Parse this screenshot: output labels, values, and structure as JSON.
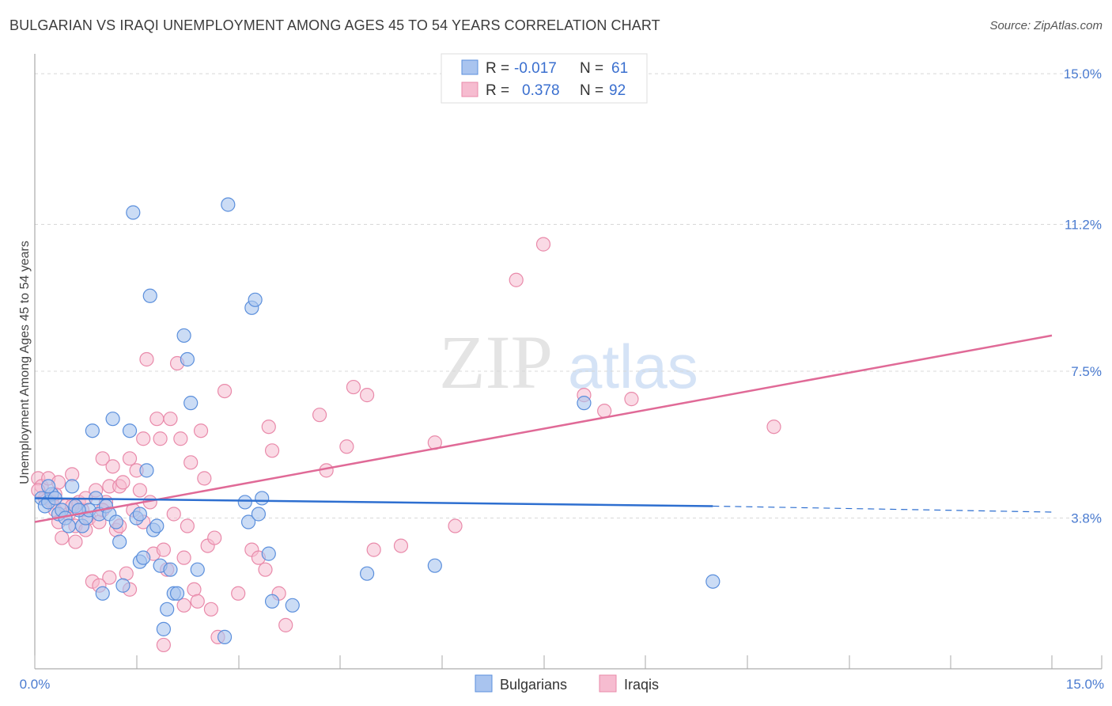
{
  "header": {
    "title": "BULGARIAN VS IRAQI UNEMPLOYMENT AMONG AGES 45 TO 54 YEARS CORRELATION CHART",
    "source": "Source: ZipAtlas.com"
  },
  "watermark": {
    "zip": "ZIP",
    "atlas": "atlas"
  },
  "legend": {
    "bulgarians": {
      "r_label": "R =",
      "r_value": "-0.017",
      "n_label": "N =",
      "n_value": "61"
    },
    "iraqis": {
      "r_label": "R =",
      "r_value": "0.378",
      "n_label": "N =",
      "n_value": "92"
    }
  },
  "colors": {
    "bulgarian_fill": "#a9c4ef",
    "bulgarian_stroke": "#5b8fdc",
    "bulgarian_line": "#2e6fd0",
    "iraqi_fill": "#f6bcd0",
    "iraqi_stroke": "#e98aaa",
    "iraqi_line": "#e06a97",
    "grid": "#d8d8d8",
    "tick": "#4a7bd0"
  },
  "chart_data": {
    "type": "scatter",
    "title": "BULGARIAN VS IRAQI UNEMPLOYMENT AMONG AGES 45 TO 54 YEARS CORRELATION CHART",
    "xlabel": "",
    "ylabel": "Unemployment Among Ages 45 to 54 years",
    "xlim": [
      0,
      15
    ],
    "ylim": [
      0,
      15.5
    ],
    "x_tick_labels": [
      "0.0%",
      "15.0%"
    ],
    "y_ticks": [
      3.8,
      7.5,
      11.2,
      15.0
    ],
    "y_tick_labels": [
      "3.8%",
      "7.5%",
      "11.2%",
      "15.0%"
    ],
    "grid": true,
    "series": [
      {
        "name": "Bulgarians",
        "r": -0.017,
        "n": 61,
        "trend": {
          "x0": 0,
          "y0": 4.3,
          "x1": 10.0,
          "y1": 4.1,
          "dashed_to_x": 15,
          "dashed_to_y": 3.95
        },
        "points": [
          [
            0.1,
            4.3
          ],
          [
            0.15,
            4.1
          ],
          [
            0.2,
            4.2
          ],
          [
            0.25,
            4.4
          ],
          [
            0.3,
            4.3
          ],
          [
            0.35,
            3.9
          ],
          [
            0.4,
            4.0
          ],
          [
            0.45,
            3.8
          ],
          [
            0.5,
            3.6
          ],
          [
            0.55,
            4.6
          ],
          [
            0.6,
            4.1
          ],
          [
            0.7,
            3.6
          ],
          [
            0.75,
            3.8
          ],
          [
            0.8,
            4.0
          ],
          [
            0.85,
            6.0
          ],
          [
            0.9,
            4.3
          ],
          [
            0.95,
            3.9
          ],
          [
            1.0,
            1.9
          ],
          [
            1.05,
            4.1
          ],
          [
            1.1,
            3.9
          ],
          [
            1.15,
            6.3
          ],
          [
            1.2,
            3.7
          ],
          [
            1.25,
            3.2
          ],
          [
            1.3,
            2.1
          ],
          [
            1.4,
            6.0
          ],
          [
            1.45,
            11.5
          ],
          [
            1.5,
            3.8
          ],
          [
            1.55,
            2.7
          ],
          [
            1.6,
            2.8
          ],
          [
            1.65,
            5.0
          ],
          [
            1.7,
            9.4
          ],
          [
            1.75,
            3.5
          ],
          [
            1.8,
            3.6
          ],
          [
            1.85,
            2.6
          ],
          [
            1.9,
            1.0
          ],
          [
            1.95,
            1.5
          ],
          [
            2.0,
            2.5
          ],
          [
            2.05,
            1.9
          ],
          [
            2.1,
            1.9
          ],
          [
            2.2,
            8.4
          ],
          [
            2.25,
            7.8
          ],
          [
            2.3,
            6.7
          ],
          [
            2.4,
            2.5
          ],
          [
            2.8,
            0.8
          ],
          [
            2.85,
            11.7
          ],
          [
            3.1,
            4.2
          ],
          [
            3.15,
            3.7
          ],
          [
            3.2,
            9.1
          ],
          [
            3.25,
            9.3
          ],
          [
            3.3,
            3.9
          ],
          [
            3.35,
            4.3
          ],
          [
            3.45,
            2.9
          ],
          [
            3.5,
            1.7
          ],
          [
            3.8,
            1.6
          ],
          [
            4.9,
            2.4
          ],
          [
            5.9,
            2.6
          ],
          [
            8.1,
            6.7
          ],
          [
            10.0,
            2.2
          ],
          [
            0.2,
            4.6
          ],
          [
            0.65,
            4.0
          ],
          [
            1.55,
            3.9
          ]
        ]
      },
      {
        "name": "Iraqis",
        "r": 0.378,
        "n": 92,
        "trend": {
          "x0": 0,
          "y0": 3.7,
          "x1": 15,
          "y1": 8.4
        },
        "points": [
          [
            0.05,
            4.8
          ],
          [
            0.1,
            4.6
          ],
          [
            0.15,
            4.3
          ],
          [
            0.2,
            4.8
          ],
          [
            0.25,
            4.2
          ],
          [
            0.3,
            4.0
          ],
          [
            0.35,
            3.7
          ],
          [
            0.4,
            3.3
          ],
          [
            0.45,
            4.1
          ],
          [
            0.5,
            3.9
          ],
          [
            0.55,
            4.9
          ],
          [
            0.6,
            3.6
          ],
          [
            0.65,
            4.2
          ],
          [
            0.7,
            4.0
          ],
          [
            0.75,
            4.3
          ],
          [
            0.8,
            3.8
          ],
          [
            0.85,
            2.2
          ],
          [
            0.9,
            4.5
          ],
          [
            0.95,
            3.7
          ],
          [
            1.0,
            5.3
          ],
          [
            1.05,
            4.2
          ],
          [
            1.1,
            4.6
          ],
          [
            1.15,
            5.1
          ],
          [
            1.2,
            3.5
          ],
          [
            1.25,
            4.6
          ],
          [
            1.3,
            4.7
          ],
          [
            1.35,
            2.4
          ],
          [
            1.4,
            5.3
          ],
          [
            1.45,
            4.0
          ],
          [
            1.5,
            5.0
          ],
          [
            1.55,
            4.5
          ],
          [
            1.6,
            3.7
          ],
          [
            1.65,
            7.8
          ],
          [
            1.7,
            4.2
          ],
          [
            1.75,
            2.9
          ],
          [
            1.8,
            6.3
          ],
          [
            1.85,
            5.8
          ],
          [
            1.9,
            3.0
          ],
          [
            1.95,
            2.5
          ],
          [
            2.0,
            6.3
          ],
          [
            2.05,
            3.9
          ],
          [
            2.1,
            7.7
          ],
          [
            2.15,
            5.8
          ],
          [
            2.2,
            2.8
          ],
          [
            2.25,
            3.6
          ],
          [
            2.3,
            5.2
          ],
          [
            2.35,
            2.0
          ],
          [
            2.4,
            1.7
          ],
          [
            2.45,
            6.0
          ],
          [
            2.5,
            4.8
          ],
          [
            2.55,
            3.1
          ],
          [
            2.6,
            1.5
          ],
          [
            2.65,
            3.3
          ],
          [
            2.7,
            0.8
          ],
          [
            2.8,
            7.0
          ],
          [
            3.0,
            1.9
          ],
          [
            3.2,
            3.0
          ],
          [
            3.3,
            2.8
          ],
          [
            3.4,
            2.5
          ],
          [
            3.45,
            6.1
          ],
          [
            3.5,
            5.5
          ],
          [
            3.6,
            1.9
          ],
          [
            3.7,
            1.1
          ],
          [
            4.2,
            6.4
          ],
          [
            4.3,
            5.0
          ],
          [
            4.6,
            5.6
          ],
          [
            4.7,
            7.1
          ],
          [
            4.9,
            6.9
          ],
          [
            5.0,
            3.0
          ],
          [
            5.4,
            3.1
          ],
          [
            5.9,
            5.7
          ],
          [
            6.2,
            3.6
          ],
          [
            7.1,
            9.8
          ],
          [
            7.5,
            10.7
          ],
          [
            8.1,
            6.9
          ],
          [
            8.4,
            6.5
          ],
          [
            8.8,
            6.8
          ],
          [
            10.9,
            6.1
          ],
          [
            0.05,
            4.5
          ],
          [
            0.3,
            4.4
          ],
          [
            0.6,
            3.2
          ],
          [
            0.75,
            3.5
          ],
          [
            1.0,
            4.0
          ],
          [
            1.1,
            2.3
          ],
          [
            1.4,
            2.0
          ],
          [
            1.6,
            5.8
          ],
          [
            1.9,
            0.6
          ],
          [
            2.2,
            1.6
          ],
          [
            0.35,
            4.7
          ],
          [
            0.55,
            4.1
          ],
          [
            0.95,
            2.1
          ],
          [
            1.25,
            3.6
          ]
        ]
      }
    ]
  },
  "bottom_legend": {
    "bulgarians": "Bulgarians",
    "iraqis": "Iraqis"
  }
}
